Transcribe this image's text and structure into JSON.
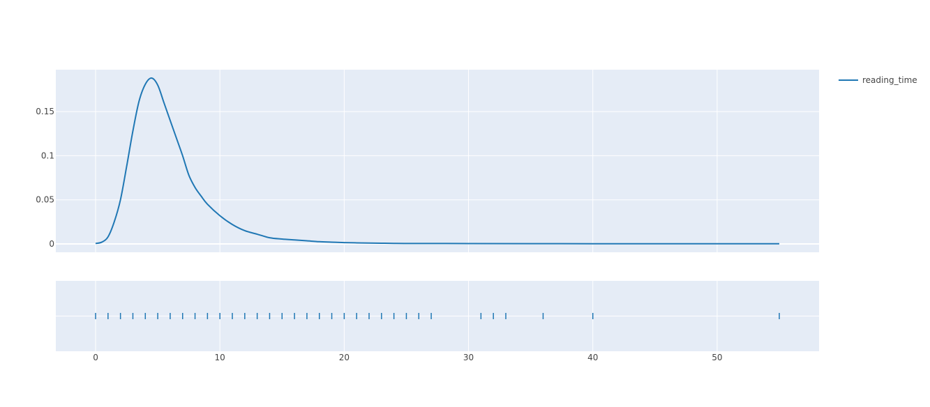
{
  "chart_data": {
    "type": "line",
    "title": "",
    "xlabel": "",
    "ylabel": "",
    "xlim": [
      -3.2,
      58.2
    ],
    "ylim": [
      -0.0095,
      0.1975
    ],
    "grid": true,
    "legend_placement": "top-right",
    "x_ticks": [
      0,
      10,
      20,
      30,
      40,
      50
    ],
    "y_ticks": [
      0,
      0.05,
      0.1,
      0.15
    ],
    "x_tick_labels": [
      "0",
      "10",
      "20",
      "30",
      "40",
      "50"
    ],
    "y_tick_labels": [
      "0",
      "0.05",
      "0.1",
      "0.15"
    ],
    "series": [
      {
        "name": "reading_time",
        "color": "#1f77b4",
        "x": [
          0,
          0.5,
          1,
          1.5,
          2,
          2.5,
          3,
          3.5,
          4,
          4.5,
          5,
          5.5,
          6,
          6.5,
          7,
          7.5,
          8,
          8.5,
          9,
          10,
          11,
          12,
          13,
          14,
          15,
          16,
          17,
          18,
          19,
          20,
          21,
          22,
          23,
          24,
          25,
          30,
          35,
          40,
          45,
          50,
          55
        ],
        "y": [
          0.0005,
          0.002,
          0.008,
          0.025,
          0.05,
          0.088,
          0.128,
          0.162,
          0.181,
          0.188,
          0.18,
          0.16,
          0.14,
          0.12,
          0.1,
          0.078,
          0.064,
          0.054,
          0.045,
          0.032,
          0.022,
          0.015,
          0.011,
          0.007,
          0.0055,
          0.0045,
          0.0035,
          0.0025,
          0.002,
          0.0015,
          0.0012,
          0.001,
          0.0008,
          0.0006,
          0.0005,
          0.0004,
          0.0003,
          0.0002,
          0.0002,
          0.0002,
          0.0002
        ]
      }
    ],
    "rug": {
      "name": "reading_time",
      "color": "#1f77b4",
      "values": [
        0,
        1,
        2,
        3,
        4,
        5,
        6,
        7,
        8,
        9,
        10,
        11,
        12,
        13,
        14,
        15,
        16,
        17,
        18,
        19,
        20,
        21,
        22,
        23,
        24,
        25,
        26,
        27,
        31,
        32,
        33,
        36,
        40,
        55
      ]
    }
  }
}
